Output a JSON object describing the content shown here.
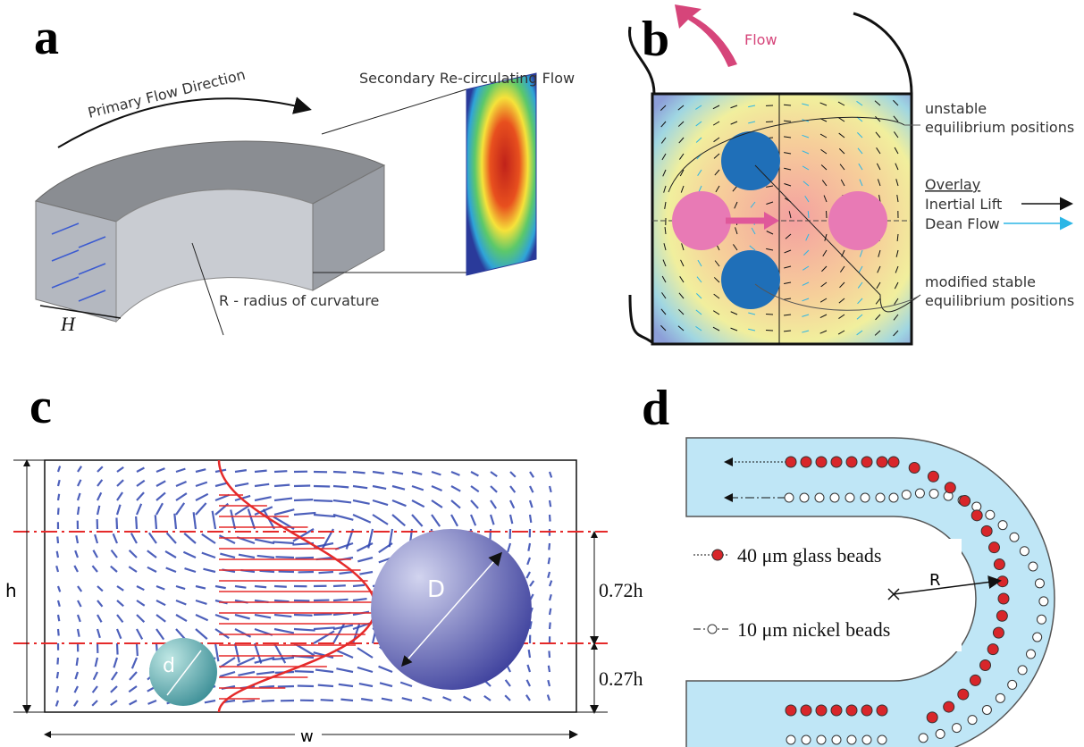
{
  "panels": [
    {
      "label": "a",
      "primary_flow": "Primary Flow Direction",
      "secondary_flow": "Secondary Re-circulating Flow",
      "width_label": "H",
      "radius_label": "R - radius of curvature"
    },
    {
      "label": "b",
      "flow": "Flow",
      "unstable": [
        "unstable",
        "equilibrium positions"
      ],
      "overlay": "Overlay",
      "inertial_lift": "Inertial Lift",
      "dean_flow": "Dean Flow",
      "stable": [
        "modified stable",
        "equilibrium positions"
      ]
    },
    {
      "label": "c",
      "height_label": "h",
      "small_particle": "d",
      "large_particle": "D",
      "upper_fraction": "0.72h",
      "lower_fraction": "0.27h",
      "width_label": "w"
    },
    {
      "label": "d",
      "glass_beads": "40 μm glass beads",
      "nickel_beads": "10 μm nickel beads",
      "radius_label": "R"
    }
  ]
}
